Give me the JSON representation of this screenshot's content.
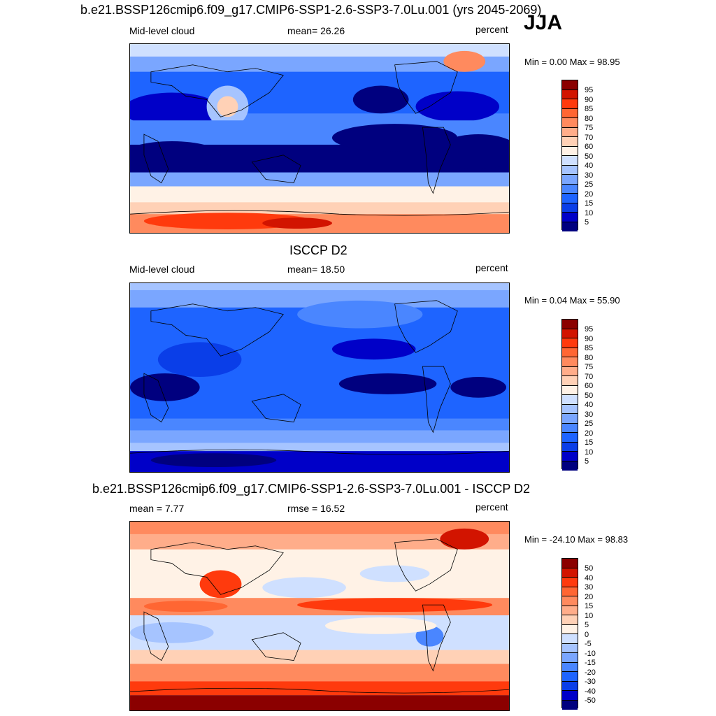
{
  "colors": {
    "scale": [
      "#00007f",
      "#0000c8",
      "#0a3ee8",
      "#1e64ff",
      "#4a86ff",
      "#7aa6ff",
      "#a6c4ff",
      "#cfe0ff",
      "#fff2e6",
      "#ffd1b6",
      "#ffad8a",
      "#ff8a5e",
      "#ff6633",
      "#ff3a0d",
      "#d21400",
      "#8b0000"
    ],
    "ocean_deep": "#00007f",
    "land_line": "#000000"
  },
  "panel1": {
    "title": "b.e21.BSSP126cmip6.f09_g17.CMIP6-SSP1-2.6-SSP3-7.0Lu.001 (yrs 2045-2069)",
    "season": "JJA",
    "left_label": "Mid-level cloud",
    "center_label": "mean=  26.26",
    "units": "percent",
    "minmax": "Min =   0.00 Max =  98.95",
    "colorbar": [
      "95",
      "90",
      "85",
      "80",
      "75",
      "70",
      "60",
      "50",
      "40",
      "30",
      "25",
      "20",
      "15",
      "10",
      "5"
    ]
  },
  "panel2": {
    "title": "ISCCP D2",
    "left_label": "Mid-level cloud",
    "center_label": "mean=  18.50",
    "units": "percent",
    "minmax": "Min =   0.04 Max =  55.90",
    "colorbar": [
      "95",
      "90",
      "85",
      "80",
      "75",
      "70",
      "60",
      "50",
      "40",
      "30",
      "25",
      "20",
      "15",
      "10",
      "5"
    ]
  },
  "panel3": {
    "title": "b.e21.BSSP126cmip6.f09_g17.CMIP6-SSP1-2.6-SSP3-7.0Lu.001 - ISCCP D2",
    "left_label": "mean =   7.77",
    "center_label": "rmse =  16.52",
    "units": "percent",
    "minmax": "Min = -24.10 Max =  98.83",
    "colorbar": [
      "50",
      "40",
      "30",
      "20",
      "15",
      "10",
      "5",
      "0",
      "-5",
      "-10",
      "-15",
      "-20",
      "-30",
      "-40",
      "-50"
    ]
  }
}
